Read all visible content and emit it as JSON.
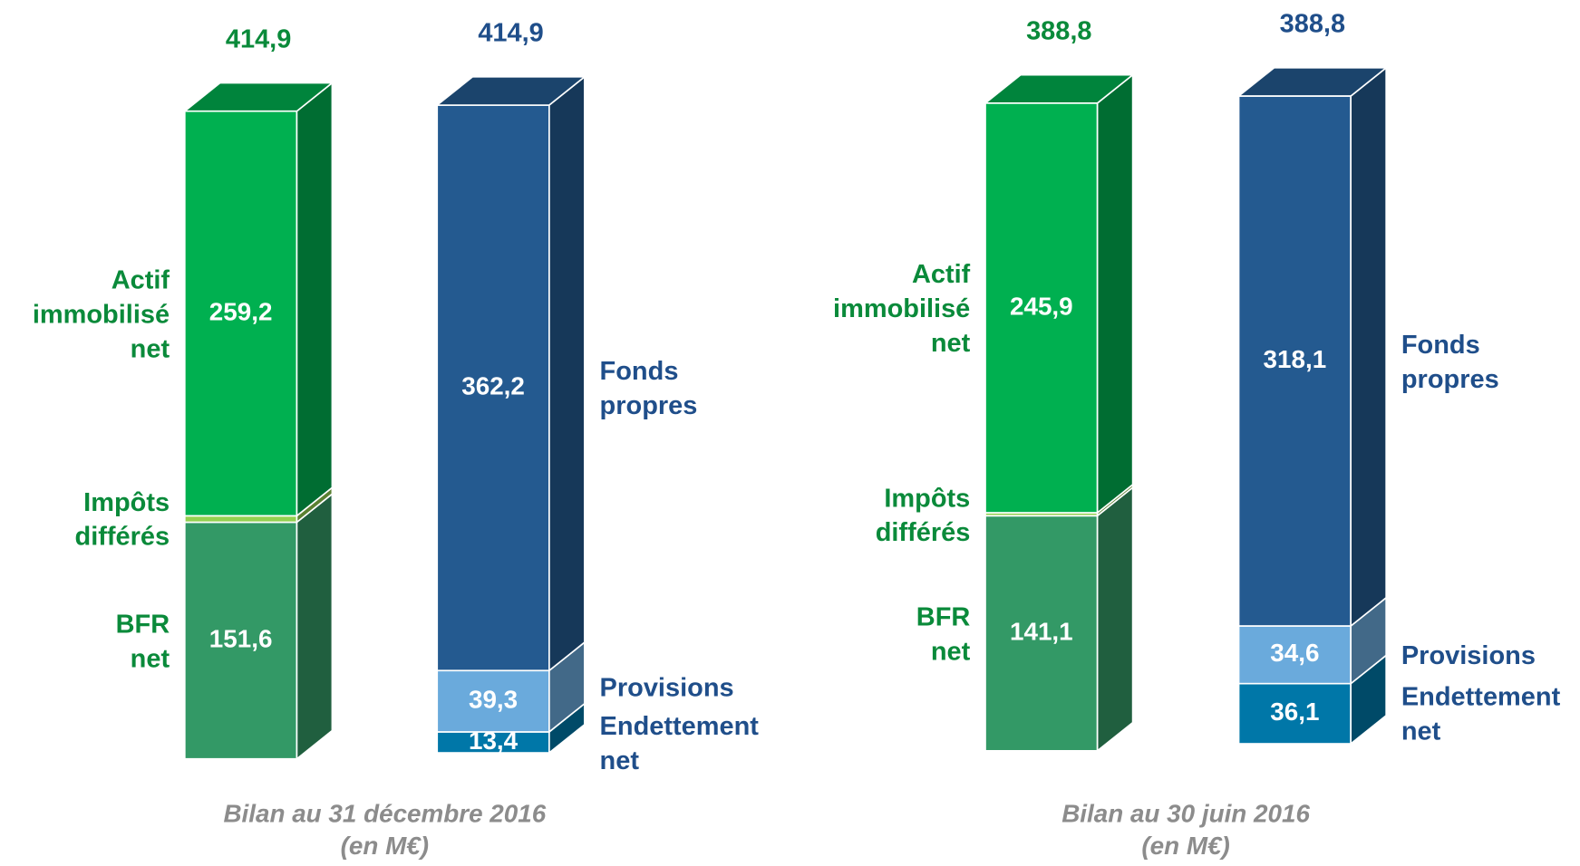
{
  "chart_data": [
    {
      "type": "bar",
      "stacked": true,
      "title": "Bilan au 31 décembre 2016",
      "subtitle": "(en M€)",
      "stacks": [
        {
          "total": 414.9,
          "total_label": "414,9",
          "label_color": "#0a8a3a",
          "segments": [
            {
              "name": "BFR\nnet",
              "value": 151.6,
              "value_label": "151,6",
              "color": "#339966"
            },
            {
              "name": "Impôts\ndifférés",
              "value": 4.1,
              "value_label": "4,1",
              "color": "#92d050"
            },
            {
              "name": "Actif\nimmobilisé\nnet",
              "value": 259.2,
              "value_label": "259,2",
              "color": "#00b050"
            }
          ]
        },
        {
          "total": 414.9,
          "total_label": "414,9",
          "label_color": "#1f4e8a",
          "segments": [
            {
              "name": "Endettement\nnet",
              "value": 13.4,
              "value_label": "13,4",
              "color": "#0077a8"
            },
            {
              "name": "Provisions",
              "value": 39.3,
              "value_label": "39,3",
              "color": "#6aaadc"
            },
            {
              "name": "Fonds\npropres",
              "value": 362.2,
              "value_label": "362,2",
              "color": "#245a90"
            }
          ]
        }
      ]
    },
    {
      "type": "bar",
      "stacked": true,
      "title": "Bilan au 30 juin 2016",
      "subtitle": "(en M€)",
      "stacks": [
        {
          "total": 388.8,
          "total_label": "388,8",
          "label_color": "#0a8a3a",
          "segments": [
            {
              "name": "BFR\nnet",
              "value": 141.1,
              "value_label": "141,1",
              "color": "#339966"
            },
            {
              "name": "Impôts\ndifférés",
              "value": 1.8,
              "value_label": "1,8",
              "color": "#92d050"
            },
            {
              "name": "Actif\nimmobilisé\nnet",
              "value": 245.9,
              "value_label": "245,9",
              "color": "#00b050"
            }
          ]
        },
        {
          "total": 388.8,
          "total_label": "388,8",
          "label_color": "#1f4e8a",
          "segments": [
            {
              "name": "Endettement\nnet",
              "value": 36.1,
              "value_label": "36,1",
              "color": "#0077a8"
            },
            {
              "name": "Provisions",
              "value": 34.6,
              "value_label": "34,6",
              "color": "#6aaadc"
            },
            {
              "name": "Fonds\npropres",
              "value": 318.1,
              "value_label": "318,1",
              "color": "#245a90"
            }
          ]
        }
      ]
    }
  ]
}
